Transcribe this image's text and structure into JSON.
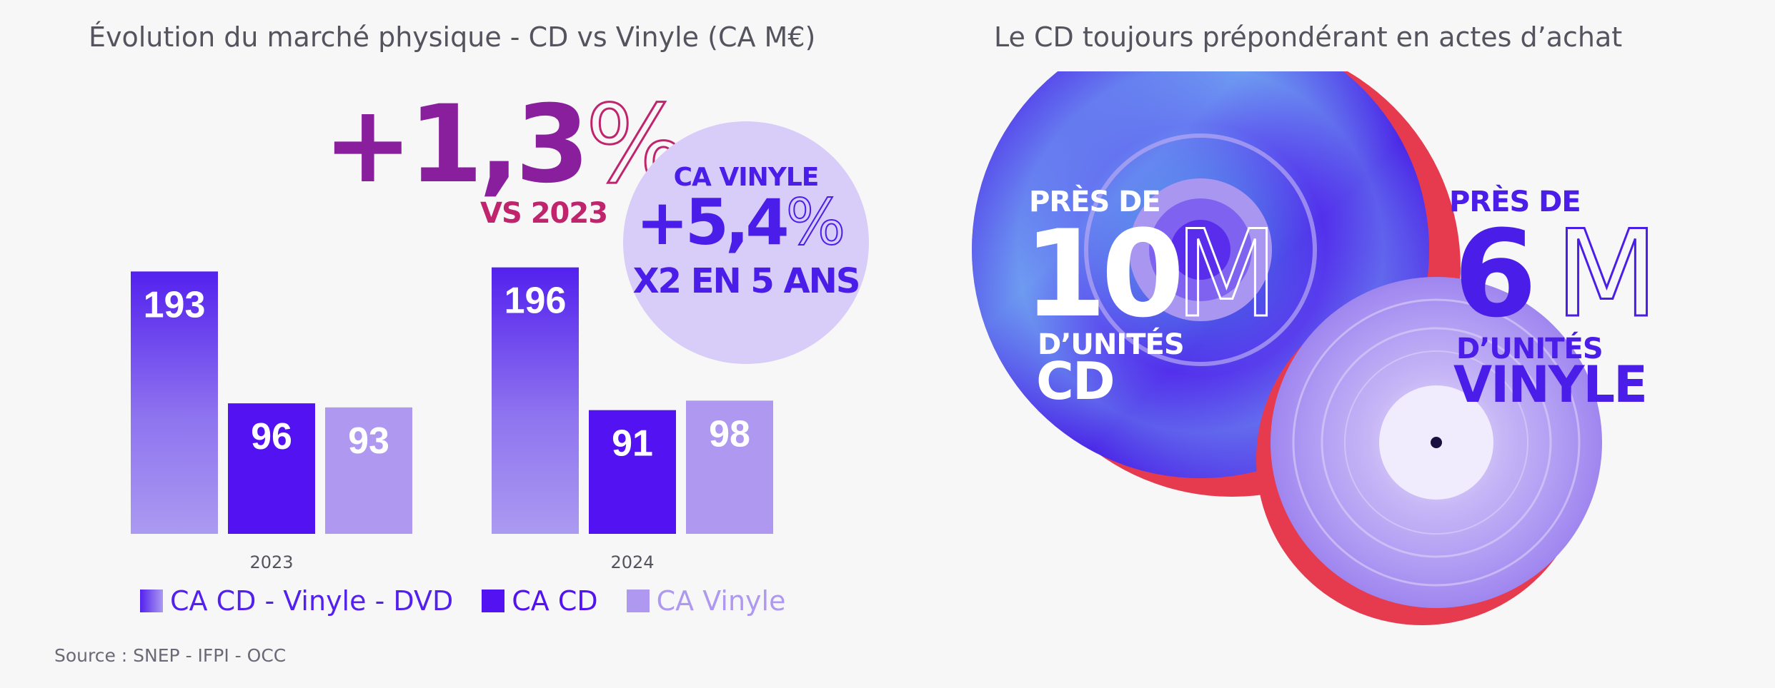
{
  "left_panel": {
    "title": "Évolution du marché physique - CD vs Vinyle (CA M€)"
  },
  "right_panel": {
    "title": "Le CD toujours prépondérant en actes d’achat"
  },
  "chart_data": {
    "type": "bar",
    "categories": [
      "2023",
      "2024"
    ],
    "series": [
      {
        "name": "CA CD - Vinyle - DVD",
        "values": [
          193,
          196
        ]
      },
      {
        "name": "CA CD",
        "values": [
          96,
          91
        ]
      },
      {
        "name": "CA Vinyle",
        "values": [
          93,
          98
        ]
      }
    ],
    "ylim": [
      0,
      210
    ],
    "grid": false,
    "legend": "bottom"
  },
  "colors": {
    "total_top": "#5321ee",
    "total_bottom": "#ab9af1",
    "cd": "#5312f2",
    "vinyl": "#ae98f0",
    "magenta": "#c0246c",
    "purple": "#8a1f9e",
    "vinyl_accent": "#4a1ee8"
  },
  "callouts": {
    "growth": {
      "number": "+1,3",
      "sign": "%",
      "sub": "VS 2023"
    },
    "vinyl_bubble": {
      "line1": "CA VINYLE",
      "number": "+5,4",
      "sign": "%",
      "line3": "X2 EN 5 ANS"
    }
  },
  "cd_stat": {
    "prefix": "PRÈS DE",
    "number": "10",
    "unit": "M",
    "units_label": "D’UNITÉS",
    "product": "CD"
  },
  "vinyl_stat": {
    "prefix": "PRÈS DE",
    "number": "6",
    "unit": "M",
    "units_label": "D’UNITÉS",
    "product": "VINYLE"
  },
  "source": "Source : SNEP - IFPI - OCC"
}
